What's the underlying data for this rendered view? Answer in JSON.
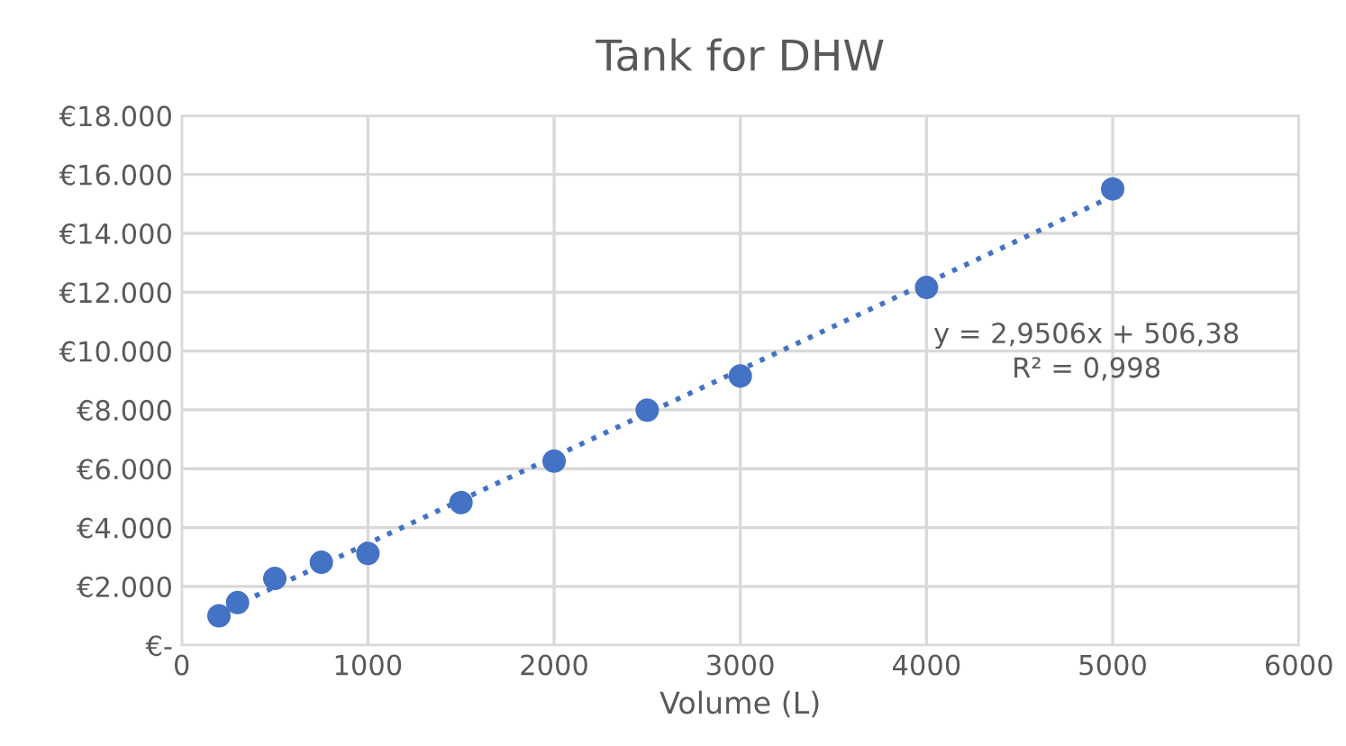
{
  "chart_data": {
    "type": "scatter",
    "title": "Tank for DHW",
    "xlabel": "Volume (L)",
    "x": [
      200,
      300,
      500,
      750,
      1000,
      1500,
      2000,
      2500,
      3000,
      4000,
      5000
    ],
    "series": [
      {
        "color": "#4472c4",
        "marker": "circle",
        "values": [
          1000,
          1450,
          2270,
          2820,
          3120,
          4850,
          6260,
          7990,
          9150,
          12160,
          15510
        ]
      },
      {
        "type": "line",
        "color": "#4472c4",
        "line_style": "dotted",
        "marker": "none",
        "x": [
          200,
          5000
        ],
        "values": [
          1100,
          15260
        ]
      }
    ],
    "annotations": [
      "y = 2,9506x + 506,38",
      "R² = 0,998"
    ],
    "xlim": [
      0,
      6000
    ],
    "xticks": [
      0,
      1000,
      2000,
      3000,
      4000,
      5000,
      6000
    ],
    "ylim": [
      0,
      18000
    ],
    "yticks": [
      {
        "value": 0,
        "label": "€-"
      },
      {
        "value": 2000,
        "label": "€2.000"
      },
      {
        "value": 4000,
        "label": "€4.000"
      },
      {
        "value": 6000,
        "label": "€6.000"
      },
      {
        "value": 8000,
        "label": "€8.000"
      },
      {
        "value": 10000,
        "label": "€10.000"
      },
      {
        "value": 12000,
        "label": "€12.000"
      },
      {
        "value": 14000,
        "label": "€14.000"
      },
      {
        "value": 16000,
        "label": "€16.000"
      },
      {
        "value": 18000,
        "label": "€18.000"
      }
    ],
    "grid": true
  }
}
